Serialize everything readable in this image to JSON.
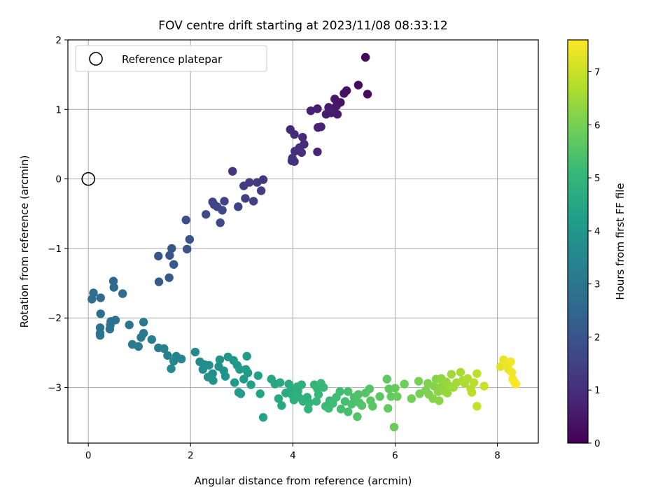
{
  "chart_data": {
    "type": "scatter",
    "title": "FOV centre drift starting at 2023/11/08 08:33:12",
    "xlabel": "Angular distance from reference (arcmin)",
    "ylabel": "Rotation from reference (arcmin)",
    "xlim": [
      -0.4,
      8.8
    ],
    "ylim": [
      -3.8,
      2.0
    ],
    "xticks": [
      0,
      2,
      4,
      6,
      8
    ],
    "yticks": [
      -3,
      -2,
      -1,
      0,
      1,
      2
    ],
    "xtick_labels": [
      "0",
      "2",
      "4",
      "6",
      "8"
    ],
    "ytick_labels": [
      "−3",
      "−2",
      "−1",
      "0",
      "1",
      "2"
    ],
    "grid": true,
    "colormap": "viridis",
    "colorbar": {
      "label": "Hours from first FF file",
      "range": [
        0,
        7.6
      ],
      "ticks": [
        0,
        1,
        2,
        3,
        4,
        5,
        6,
        7
      ],
      "tick_labels": [
        "0",
        "1",
        "2",
        "3",
        "4",
        "5",
        "6",
        "7"
      ]
    },
    "legend": {
      "entries": [
        "Reference platepar"
      ],
      "loc": "top-left"
    },
    "reference_point": {
      "x": 0,
      "y": 0
    },
    "series": [
      {
        "marker": "filled-circle",
        "points": [
          {
            "x": 5.42,
            "y": 1.75,
            "c": 0.1
          },
          {
            "x": 5.46,
            "y": 1.22,
            "c": 0.2
          },
          {
            "x": 5.28,
            "y": 1.35,
            "c": 0.25
          },
          {
            "x": 5.05,
            "y": 1.27,
            "c": 0.3
          },
          {
            "x": 5.0,
            "y": 1.23,
            "c": 0.35
          },
          {
            "x": 4.93,
            "y": 1.1,
            "c": 0.4
          },
          {
            "x": 4.82,
            "y": 1.15,
            "c": 0.45
          },
          {
            "x": 4.85,
            "y": 1.05,
            "c": 0.5
          },
          {
            "x": 4.78,
            "y": 0.99,
            "c": 0.5
          },
          {
            "x": 4.7,
            "y": 1.03,
            "c": 0.55
          },
          {
            "x": 4.65,
            "y": 0.93,
            "c": 0.6
          },
          {
            "x": 4.75,
            "y": 0.95,
            "c": 0.6
          },
          {
            "x": 4.87,
            "y": 0.93,
            "c": 0.55
          },
          {
            "x": 4.48,
            "y": 1.01,
            "c": 0.65
          },
          {
            "x": 4.35,
            "y": 0.98,
            "c": 0.7
          },
          {
            "x": 4.55,
            "y": 0.75,
            "c": 0.7
          },
          {
            "x": 4.49,
            "y": 0.74,
            "c": 0.75
          },
          {
            "x": 4.48,
            "y": 0.39,
            "c": 0.8
          },
          {
            "x": 3.95,
            "y": 0.71,
            "c": 0.85
          },
          {
            "x": 4.03,
            "y": 0.64,
            "c": 0.9
          },
          {
            "x": 4.19,
            "y": 0.6,
            "c": 0.9
          },
          {
            "x": 4.22,
            "y": 0.5,
            "c": 0.95
          },
          {
            "x": 4.13,
            "y": 0.45,
            "c": 1.0
          },
          {
            "x": 4.04,
            "y": 0.4,
            "c": 1.0
          },
          {
            "x": 4.17,
            "y": 0.38,
            "c": 1.05
          },
          {
            "x": 3.99,
            "y": 0.3,
            "c": 1.05
          },
          {
            "x": 4.03,
            "y": 0.25,
            "c": 1.1
          },
          {
            "x": 3.98,
            "y": 0.26,
            "c": 1.1
          },
          {
            "x": 2.82,
            "y": 0.11,
            "c": 1.2
          },
          {
            "x": 3.42,
            "y": -0.01,
            "c": 1.25
          },
          {
            "x": 3.3,
            "y": -0.05,
            "c": 1.3
          },
          {
            "x": 3.15,
            "y": -0.05,
            "c": 1.3
          },
          {
            "x": 3.04,
            "y": -0.1,
            "c": 1.35
          },
          {
            "x": 3.38,
            "y": -0.17,
            "c": 1.4
          },
          {
            "x": 3.07,
            "y": -0.28,
            "c": 1.45
          },
          {
            "x": 3.23,
            "y": -0.32,
            "c": 1.45
          },
          {
            "x": 2.93,
            "y": -0.4,
            "c": 1.5
          },
          {
            "x": 2.66,
            "y": -0.32,
            "c": 1.55
          },
          {
            "x": 2.43,
            "y": -0.33,
            "c": 1.6
          },
          {
            "x": 2.46,
            "y": -0.37,
            "c": 1.6
          },
          {
            "x": 2.52,
            "y": -0.4,
            "c": 1.65
          },
          {
            "x": 2.62,
            "y": -0.45,
            "c": 1.65
          },
          {
            "x": 2.3,
            "y": -0.51,
            "c": 1.7
          },
          {
            "x": 2.58,
            "y": -0.63,
            "c": 1.75
          },
          {
            "x": 1.91,
            "y": -0.59,
            "c": 1.85
          },
          {
            "x": 1.98,
            "y": -0.87,
            "c": 1.9
          },
          {
            "x": 1.93,
            "y": -1.01,
            "c": 1.95
          },
          {
            "x": 1.63,
            "y": -1.0,
            "c": 2.0
          },
          {
            "x": 1.59,
            "y": -1.1,
            "c": 2.0
          },
          {
            "x": 1.37,
            "y": -1.11,
            "c": 2.05
          },
          {
            "x": 1.67,
            "y": -1.23,
            "c": 2.1
          },
          {
            "x": 1.58,
            "y": -1.42,
            "c": 2.15
          },
          {
            "x": 1.38,
            "y": -1.48,
            "c": 2.15
          },
          {
            "x": 0.49,
            "y": -1.47,
            "c": 2.55
          },
          {
            "x": 0.5,
            "y": -1.56,
            "c": 2.6
          },
          {
            "x": 0.67,
            "y": -1.65,
            "c": 2.6
          },
          {
            "x": 0.1,
            "y": -1.64,
            "c": 2.65
          },
          {
            "x": 0.24,
            "y": -1.71,
            "c": 2.7
          },
          {
            "x": 0.07,
            "y": -1.73,
            "c": 2.7
          },
          {
            "x": 0.24,
            "y": -1.94,
            "c": 2.75
          },
          {
            "x": 0.53,
            "y": -2.03,
            "c": 2.8
          },
          {
            "x": 0.44,
            "y": -2.05,
            "c": 2.8
          },
          {
            "x": 0.43,
            "y": -2.1,
            "c": 2.85
          },
          {
            "x": 0.42,
            "y": -2.16,
            "c": 2.85
          },
          {
            "x": 0.23,
            "y": -2.14,
            "c": 2.9
          },
          {
            "x": 0.23,
            "y": -2.22,
            "c": 2.9
          },
          {
            "x": 0.23,
            "y": -2.25,
            "c": 2.95
          },
          {
            "x": 0.8,
            "y": -2.1,
            "c": 3.0
          },
          {
            "x": 1.08,
            "y": -2.06,
            "c": 3.05
          },
          {
            "x": 1.08,
            "y": -2.22,
            "c": 3.1
          },
          {
            "x": 1.03,
            "y": -2.28,
            "c": 3.1
          },
          {
            "x": 0.86,
            "y": -2.38,
            "c": 3.15
          },
          {
            "x": 0.98,
            "y": -2.41,
            "c": 3.15
          },
          {
            "x": 1.24,
            "y": -2.31,
            "c": 3.2
          },
          {
            "x": 1.37,
            "y": -2.43,
            "c": 3.25
          },
          {
            "x": 1.48,
            "y": -2.44,
            "c": 3.3
          },
          {
            "x": 1.55,
            "y": -2.54,
            "c": 3.35
          },
          {
            "x": 1.72,
            "y": -2.55,
            "c": 3.4
          },
          {
            "x": 1.82,
            "y": -2.59,
            "c": 3.45
          },
          {
            "x": 1.67,
            "y": -2.62,
            "c": 3.5
          },
          {
            "x": 1.62,
            "y": -2.73,
            "c": 3.55
          },
          {
            "x": 2.09,
            "y": -2.49,
            "c": 3.6
          },
          {
            "x": 2.18,
            "y": -2.63,
            "c": 3.65
          },
          {
            "x": 2.27,
            "y": -2.67,
            "c": 3.7
          },
          {
            "x": 2.24,
            "y": -2.74,
            "c": 3.7
          },
          {
            "x": 2.36,
            "y": -2.68,
            "c": 3.75
          },
          {
            "x": 2.34,
            "y": -2.85,
            "c": 3.8
          },
          {
            "x": 2.43,
            "y": -2.8,
            "c": 3.8
          },
          {
            "x": 2.44,
            "y": -2.9,
            "c": 3.85
          },
          {
            "x": 2.57,
            "y": -2.6,
            "c": 3.85
          },
          {
            "x": 2.55,
            "y": -2.7,
            "c": 3.9
          },
          {
            "x": 2.65,
            "y": -2.76,
            "c": 3.9
          },
          {
            "x": 2.68,
            "y": -2.84,
            "c": 3.95
          },
          {
            "x": 2.73,
            "y": -2.56,
            "c": 4.0
          },
          {
            "x": 2.84,
            "y": -2.61,
            "c": 4.0
          },
          {
            "x": 2.91,
            "y": -2.68,
            "c": 4.05
          },
          {
            "x": 2.96,
            "y": -2.74,
            "c": 4.05
          },
          {
            "x": 2.86,
            "y": -2.93,
            "c": 4.1
          },
          {
            "x": 3.08,
            "y": -2.74,
            "c": 4.15
          },
          {
            "x": 3.12,
            "y": -2.79,
            "c": 4.15
          },
          {
            "x": 3.04,
            "y": -2.88,
            "c": 4.2
          },
          {
            "x": 3.1,
            "y": -2.55,
            "c": 4.2
          },
          {
            "x": 2.94,
            "y": -3.07,
            "c": 4.25
          },
          {
            "x": 2.98,
            "y": -3.09,
            "c": 4.25
          },
          {
            "x": 3.18,
            "y": -2.96,
            "c": 4.3
          },
          {
            "x": 3.32,
            "y": -2.83,
            "c": 4.3
          },
          {
            "x": 3.36,
            "y": -3.09,
            "c": 4.35
          },
          {
            "x": 3.42,
            "y": -3.43,
            "c": 4.4
          },
          {
            "x": 3.58,
            "y": -2.88,
            "c": 4.45
          },
          {
            "x": 3.65,
            "y": -2.95,
            "c": 4.5
          },
          {
            "x": 3.75,
            "y": -2.93,
            "c": 4.55
          },
          {
            "x": 3.72,
            "y": -3.16,
            "c": 4.6
          },
          {
            "x": 3.78,
            "y": -3.26,
            "c": 4.6
          },
          {
            "x": 3.86,
            "y": -3.08,
            "c": 4.65
          },
          {
            "x": 3.92,
            "y": -2.95,
            "c": 4.7
          },
          {
            "x": 3.96,
            "y": -3.03,
            "c": 4.7
          },
          {
            "x": 3.99,
            "y": -3.11,
            "c": 4.75
          },
          {
            "x": 4.02,
            "y": -3.18,
            "c": 4.75
          },
          {
            "x": 4.08,
            "y": -2.99,
            "c": 4.8
          },
          {
            "x": 4.1,
            "y": -3.05,
            "c": 4.8
          },
          {
            "x": 4.12,
            "y": -3.14,
            "c": 4.85
          },
          {
            "x": 4.17,
            "y": -2.96,
            "c": 4.85
          },
          {
            "x": 4.2,
            "y": -3.2,
            "c": 4.9
          },
          {
            "x": 4.28,
            "y": -3.14,
            "c": 4.9
          },
          {
            "x": 4.32,
            "y": -3.22,
            "c": 4.95
          },
          {
            "x": 4.3,
            "y": -3.31,
            "c": 4.95
          },
          {
            "x": 4.42,
            "y": -2.96,
            "c": 5.0
          },
          {
            "x": 4.48,
            "y": -3.02,
            "c": 5.0
          },
          {
            "x": 4.5,
            "y": -3.1,
            "c": 5.05
          },
          {
            "x": 4.46,
            "y": -3.2,
            "c": 5.05
          },
          {
            "x": 4.55,
            "y": -2.94,
            "c": 5.1
          },
          {
            "x": 4.6,
            "y": -3.0,
            "c": 5.1
          },
          {
            "x": 4.64,
            "y": -3.27,
            "c": 5.15
          },
          {
            "x": 4.72,
            "y": -3.19,
            "c": 5.15
          },
          {
            "x": 4.7,
            "y": -3.3,
            "c": 5.2
          },
          {
            "x": 4.78,
            "y": -3.23,
            "c": 5.2
          },
          {
            "x": 4.85,
            "y": -3.14,
            "c": 5.25
          },
          {
            "x": 4.92,
            "y": -3.06,
            "c": 5.25
          },
          {
            "x": 4.94,
            "y": -3.31,
            "c": 5.3
          },
          {
            "x": 5.02,
            "y": -3.2,
            "c": 5.3
          },
          {
            "x": 5.08,
            "y": -3.06,
            "c": 5.35
          },
          {
            "x": 5.08,
            "y": -3.35,
            "c": 5.35
          },
          {
            "x": 5.15,
            "y": -3.24,
            "c": 5.4
          },
          {
            "x": 5.2,
            "y": -3.14,
            "c": 5.4
          },
          {
            "x": 5.28,
            "y": -3.1,
            "c": 5.45
          },
          {
            "x": 5.3,
            "y": -3.22,
            "c": 5.45
          },
          {
            "x": 5.26,
            "y": -3.42,
            "c": 5.5
          },
          {
            "x": 5.35,
            "y": -3.26,
            "c": 5.5
          },
          {
            "x": 5.42,
            "y": -3.08,
            "c": 5.55
          },
          {
            "x": 5.5,
            "y": -3.02,
            "c": 5.55
          },
          {
            "x": 5.52,
            "y": -3.19,
            "c": 5.6
          },
          {
            "x": 5.56,
            "y": -3.27,
            "c": 5.6
          },
          {
            "x": 5.7,
            "y": -3.13,
            "c": 5.65
          },
          {
            "x": 5.84,
            "y": -2.88,
            "c": 5.7
          },
          {
            "x": 5.88,
            "y": -3.02,
            "c": 5.7
          },
          {
            "x": 5.92,
            "y": -3.13,
            "c": 5.75
          },
          {
            "x": 5.86,
            "y": -3.3,
            "c": 5.75
          },
          {
            "x": 5.98,
            "y": -3.57,
            "c": 5.8
          },
          {
            "x": 6.0,
            "y": -3.01,
            "c": 5.8
          },
          {
            "x": 6.04,
            "y": -3.13,
            "c": 5.85
          },
          {
            "x": 6.18,
            "y": -2.95,
            "c": 5.9
          },
          {
            "x": 6.32,
            "y": -3.16,
            "c": 5.95
          },
          {
            "x": 6.46,
            "y": -2.91,
            "c": 6.0
          },
          {
            "x": 6.48,
            "y": -3.09,
            "c": 6.0
          },
          {
            "x": 6.6,
            "y": -3.04,
            "c": 6.05
          },
          {
            "x": 6.64,
            "y": -2.94,
            "c": 6.1
          },
          {
            "x": 6.66,
            "y": -3.1,
            "c": 6.1
          },
          {
            "x": 6.74,
            "y": -3.16,
            "c": 6.15
          },
          {
            "x": 6.76,
            "y": -2.98,
            "c": 6.2
          },
          {
            "x": 6.8,
            "y": -2.88,
            "c": 6.2
          },
          {
            "x": 6.84,
            "y": -3.06,
            "c": 6.25
          },
          {
            "x": 6.86,
            "y": -3.19,
            "c": 6.25
          },
          {
            "x": 6.9,
            "y": -2.87,
            "c": 6.3
          },
          {
            "x": 6.92,
            "y": -2.97,
            "c": 6.3
          },
          {
            "x": 6.96,
            "y": -3.05,
            "c": 6.35
          },
          {
            "x": 7.0,
            "y": -2.92,
            "c": 6.4
          },
          {
            "x": 7.02,
            "y": -3.08,
            "c": 6.4
          },
          {
            "x": 7.06,
            "y": -2.98,
            "c": 6.45
          },
          {
            "x": 7.1,
            "y": -2.81,
            "c": 6.5
          },
          {
            "x": 7.14,
            "y": -3.0,
            "c": 6.5
          },
          {
            "x": 7.2,
            "y": -2.93,
            "c": 6.55
          },
          {
            "x": 7.28,
            "y": -2.78,
            "c": 6.6
          },
          {
            "x": 7.32,
            "y": -2.9,
            "c": 6.65
          },
          {
            "x": 7.36,
            "y": -2.94,
            "c": 6.65
          },
          {
            "x": 7.42,
            "y": -2.87,
            "c": 6.7
          },
          {
            "x": 7.48,
            "y": -3.02,
            "c": 6.75
          },
          {
            "x": 7.54,
            "y": -2.93,
            "c": 6.8
          },
          {
            "x": 7.5,
            "y": -3.07,
            "c": 6.8
          },
          {
            "x": 7.6,
            "y": -2.8,
            "c": 6.85
          },
          {
            "x": 7.6,
            "y": -3.27,
            "c": 6.9
          },
          {
            "x": 7.74,
            "y": -2.98,
            "c": 7.0
          },
          {
            "x": 8.06,
            "y": -2.7,
            "c": 7.3
          },
          {
            "x": 8.12,
            "y": -2.6,
            "c": 7.35
          },
          {
            "x": 8.16,
            "y": -2.66,
            "c": 7.4
          },
          {
            "x": 8.22,
            "y": -2.74,
            "c": 7.4
          },
          {
            "x": 8.26,
            "y": -2.63,
            "c": 7.45
          },
          {
            "x": 8.28,
            "y": -2.78,
            "c": 7.45
          },
          {
            "x": 8.3,
            "y": -2.88,
            "c": 7.5
          },
          {
            "x": 8.33,
            "y": -2.92,
            "c": 7.55
          },
          {
            "x": 8.36,
            "y": -2.95,
            "c": 7.6
          }
        ]
      }
    ]
  }
}
